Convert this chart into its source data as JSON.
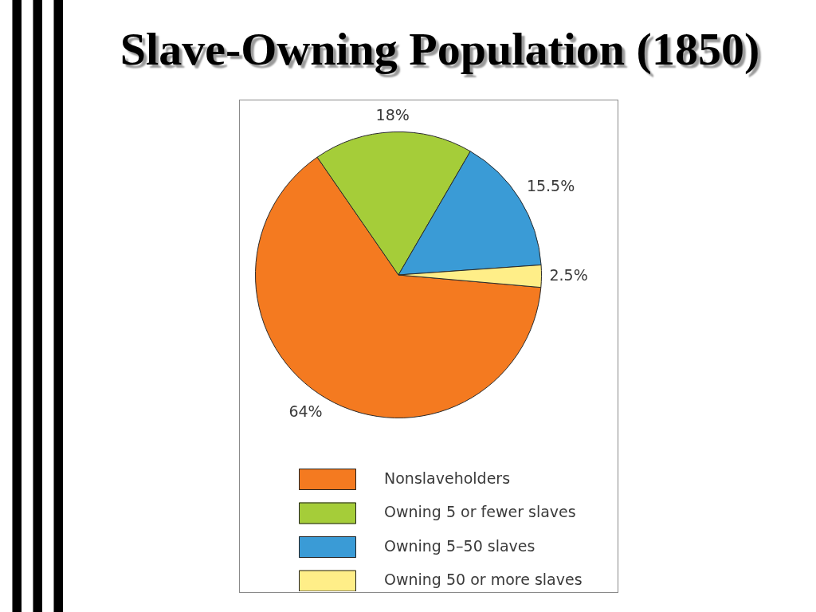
{
  "chart_data": {
    "type": "pie",
    "title": "Slave-Owning Population (1850)",
    "categories": [
      "Nonslaveholders",
      "Owning 5 or fewer slaves",
      "Owning 5–50 slaves",
      "Owning 50 or more slaves"
    ],
    "values": [
      64,
      18,
      15.5,
      2.5
    ],
    "colors": [
      "#f47a20",
      "#a5cd39",
      "#3a9bd6",
      "#ffee88"
    ],
    "value_labels": [
      "64%",
      "18%",
      "15.5%",
      "2.5%"
    ],
    "legend": "bottom"
  }
}
